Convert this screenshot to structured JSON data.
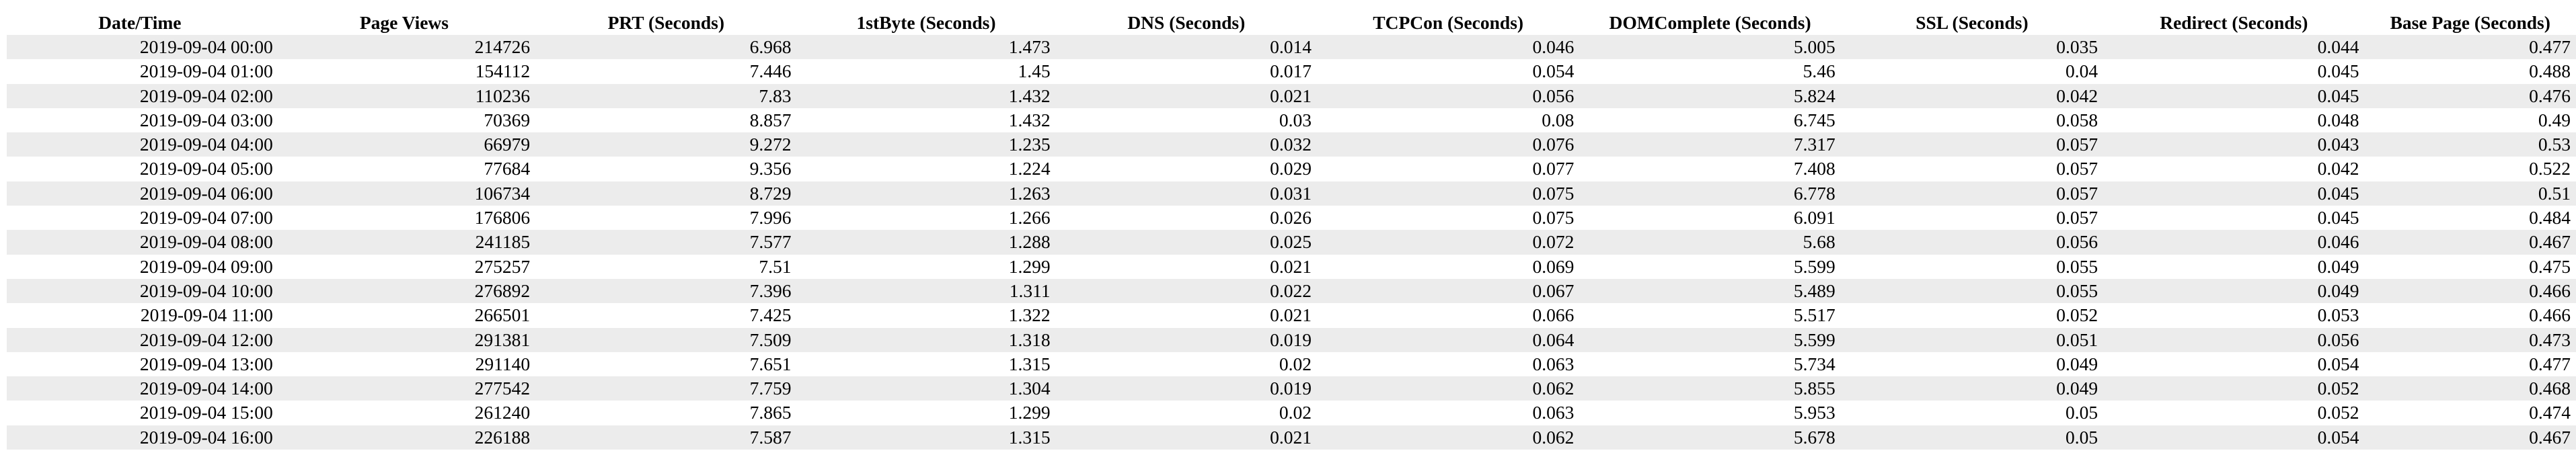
{
  "table": {
    "headers": [
      "Date/Time",
      "Page Views",
      "PRT (Seconds)",
      "1stByte (Seconds)",
      "DNS (Seconds)",
      "TCPCon (Seconds)",
      "DOMComplete (Seconds)",
      "SSL (Seconds)",
      "Redirect (Seconds)",
      "Base Page (Seconds)"
    ],
    "rows": [
      [
        "2019-09-04 00:00",
        "214726",
        "6.968",
        "1.473",
        "0.014",
        "0.046",
        "5.005",
        "0.035",
        "0.044",
        "0.477"
      ],
      [
        "2019-09-04 01:00",
        "154112",
        "7.446",
        "1.45",
        "0.017",
        "0.054",
        "5.46",
        "0.04",
        "0.045",
        "0.488"
      ],
      [
        "2019-09-04 02:00",
        "110236",
        "7.83",
        "1.432",
        "0.021",
        "0.056",
        "5.824",
        "0.042",
        "0.045",
        "0.476"
      ],
      [
        "2019-09-04 03:00",
        "70369",
        "8.857",
        "1.432",
        "0.03",
        "0.08",
        "6.745",
        "0.058",
        "0.048",
        "0.49"
      ],
      [
        "2019-09-04 04:00",
        "66979",
        "9.272",
        "1.235",
        "0.032",
        "0.076",
        "7.317",
        "0.057",
        "0.043",
        "0.53"
      ],
      [
        "2019-09-04 05:00",
        "77684",
        "9.356",
        "1.224",
        "0.029",
        "0.077",
        "7.408",
        "0.057",
        "0.042",
        "0.522"
      ],
      [
        "2019-09-04 06:00",
        "106734",
        "8.729",
        "1.263",
        "0.031",
        "0.075",
        "6.778",
        "0.057",
        "0.045",
        "0.51"
      ],
      [
        "2019-09-04 07:00",
        "176806",
        "7.996",
        "1.266",
        "0.026",
        "0.075",
        "6.091",
        "0.057",
        "0.045",
        "0.484"
      ],
      [
        "2019-09-04 08:00",
        "241185",
        "7.577",
        "1.288",
        "0.025",
        "0.072",
        "5.68",
        "0.056",
        "0.046",
        "0.467"
      ],
      [
        "2019-09-04 09:00",
        "275257",
        "7.51",
        "1.299",
        "0.021",
        "0.069",
        "5.599",
        "0.055",
        "0.049",
        "0.475"
      ],
      [
        "2019-09-04 10:00",
        "276892",
        "7.396",
        "1.311",
        "0.022",
        "0.067",
        "5.489",
        "0.055",
        "0.049",
        "0.466"
      ],
      [
        "2019-09-04 11:00",
        "266501",
        "7.425",
        "1.322",
        "0.021",
        "0.066",
        "5.517",
        "0.052",
        "0.053",
        "0.466"
      ],
      [
        "2019-09-04 12:00",
        "291381",
        "7.509",
        "1.318",
        "0.019",
        "0.064",
        "5.599",
        "0.051",
        "0.056",
        "0.473"
      ],
      [
        "2019-09-04 13:00",
        "291140",
        "7.651",
        "1.315",
        "0.02",
        "0.063",
        "5.734",
        "0.049",
        "0.054",
        "0.477"
      ],
      [
        "2019-09-04 14:00",
        "277542",
        "7.759",
        "1.304",
        "0.019",
        "0.062",
        "5.855",
        "0.049",
        "0.052",
        "0.468"
      ],
      [
        "2019-09-04 15:00",
        "261240",
        "7.865",
        "1.299",
        "0.02",
        "0.063",
        "5.953",
        "0.05",
        "0.052",
        "0.474"
      ],
      [
        "2019-09-04 16:00",
        "226188",
        "7.587",
        "1.315",
        "0.021",
        "0.062",
        "5.678",
        "0.05",
        "0.054",
        "0.467"
      ]
    ]
  },
  "colors": {
    "stripe": "#ececec",
    "background": "#ffffff",
    "text": "#000000"
  }
}
